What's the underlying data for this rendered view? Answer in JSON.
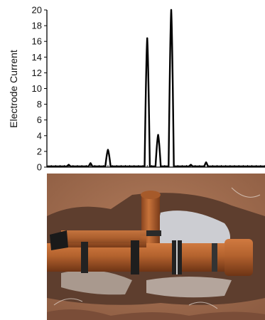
{
  "chart_data": {
    "type": "line",
    "title": "",
    "xlabel": "",
    "ylabel": "Electrode Current",
    "ylim": [
      0,
      20
    ],
    "yticks": [
      0,
      2,
      4,
      6,
      8,
      10,
      12,
      14,
      16,
      18,
      20
    ],
    "x_tick_labels_shown": false,
    "grid": false,
    "series": [
      {
        "peaks": [
          {
            "x": 0.1,
            "y": 0.3
          },
          {
            "x": 0.2,
            "y": 0.5
          },
          {
            "x": 0.28,
            "y": 2.2
          },
          {
            "x": 0.46,
            "y": 16.4
          },
          {
            "x": 0.51,
            "y": 4.1
          },
          {
            "x": 0.57,
            "y": 20.0
          },
          {
            "x": 0.66,
            "y": 0.3
          },
          {
            "x": 0.73,
            "y": 0.6
          }
        ]
      }
    ]
  },
  "photo": {
    "subject": "excavated-pipe-junction",
    "colors": {
      "soil": "#9a6a4e",
      "soil_dark": "#5a3a2a",
      "pipe": "#b3622e",
      "pipe_shadow": "#7a3c1a",
      "water": "#dfe6ef"
    }
  }
}
